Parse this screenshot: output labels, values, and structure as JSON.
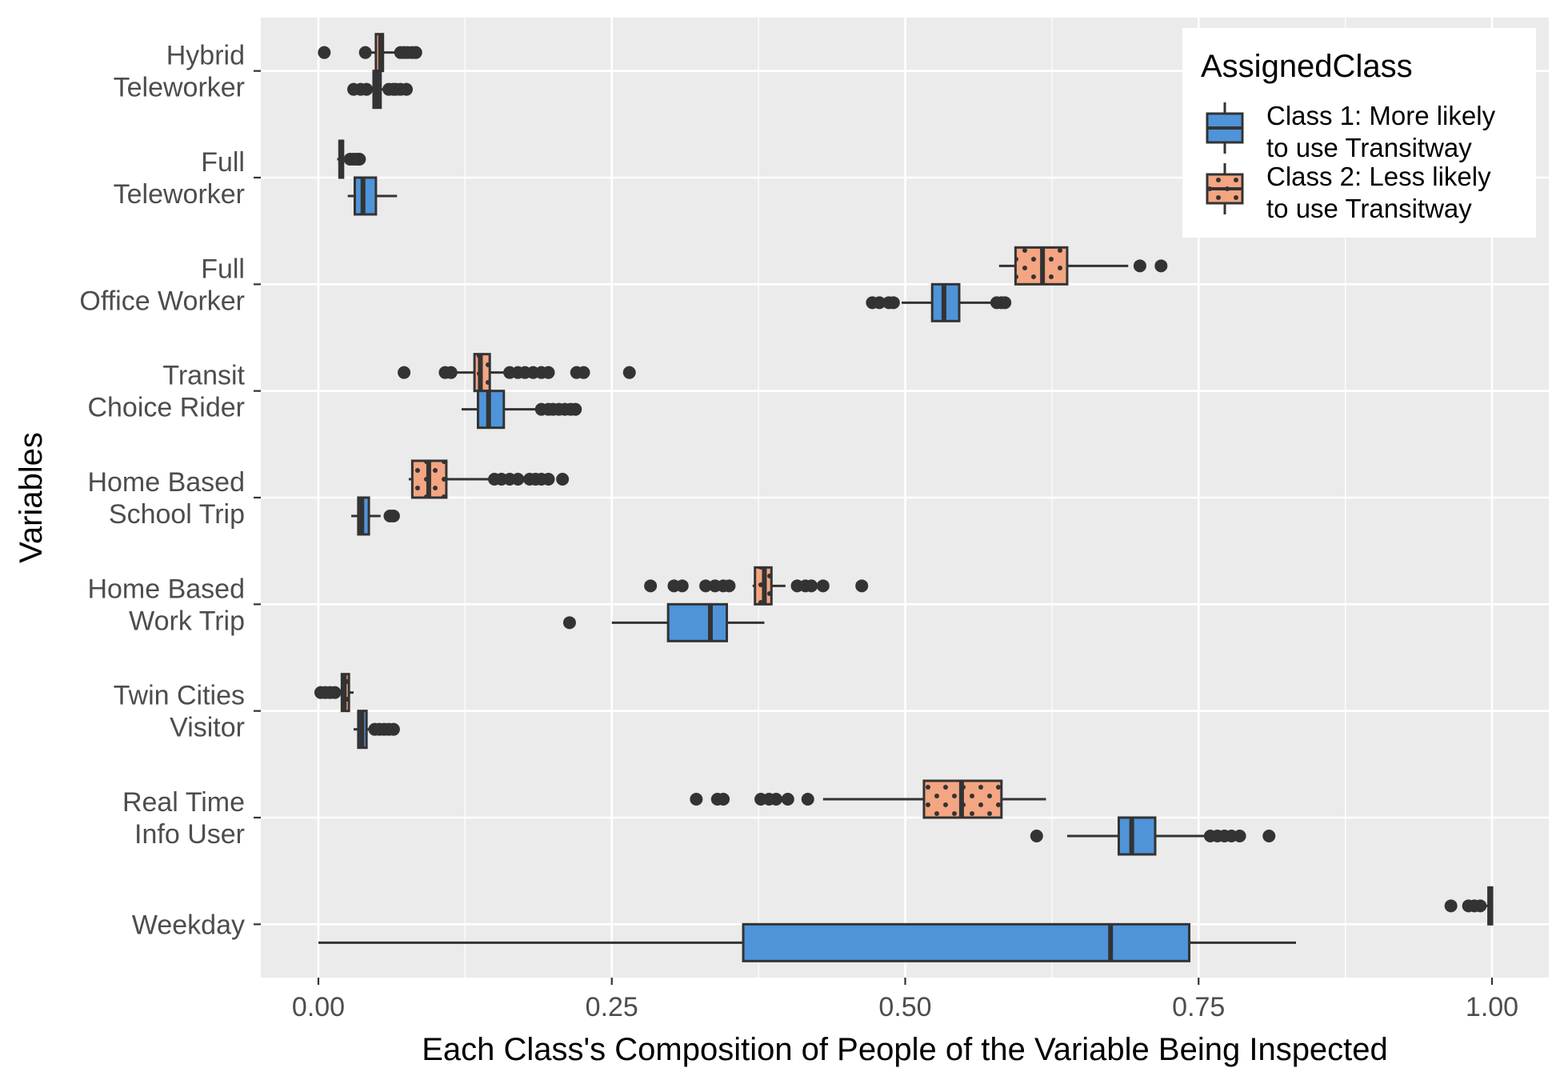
{
  "chart_data": {
    "type": "boxplot",
    "orientation": "horizontal",
    "xlabel": "Each Class's Composition of People of the Variable Being Inspected",
    "ylabel": "Variables",
    "xlim": [
      -0.1,
      1.05
    ],
    "x_ticks": [
      0,
      0.25,
      0.5,
      0.75,
      1
    ],
    "x_tick_labels": [
      "0.00",
      "0.25",
      "0.50",
      "0.75",
      "1.00"
    ],
    "grid": true,
    "legend": {
      "title": "AssignedClass",
      "position": "top-right",
      "entries": [
        {
          "key": "class1",
          "lines": [
            "Class 1: More likely",
            "to use Transitway"
          ],
          "color": "#4f94d9"
        },
        {
          "key": "class2",
          "lines": [
            "Class 2: Less likely",
            "to use Transitway"
          ],
          "color": "#f4a582",
          "pattern": "dots"
        }
      ]
    },
    "categories": [
      {
        "lines": [
          "Hybrid",
          "Teleworker"
        ],
        "class2": {
          "whisker_low": 0.039,
          "q1": 0.049,
          "median": 0.053,
          "q3": 0.055,
          "whisker_high": 0.067,
          "outliers": [
            0.005,
            0.04,
            0.07,
            0.073,
            0.076,
            0.08,
            0.083
          ]
        },
        "class1": {
          "whisker_low": 0.043,
          "q1": 0.047,
          "median": 0.05,
          "q3": 0.053,
          "whisker_high": 0.059,
          "outliers": [
            0.03,
            0.036,
            0.041,
            0.06,
            0.064,
            0.066,
            0.07,
            0.075
          ]
        }
      },
      {
        "lines": [
          "Full",
          "Teleworker"
        ],
        "class2": {
          "whisker_low": 0.016,
          "q1": 0.018,
          "median": 0.019,
          "q3": 0.021,
          "whisker_high": 0.024,
          "outliers": [
            0.027,
            0.03,
            0.033,
            0.035
          ]
        },
        "class1": {
          "whisker_low": 0.025,
          "q1": 0.031,
          "median": 0.038,
          "q3": 0.049,
          "whisker_high": 0.067,
          "outliers": []
        }
      },
      {
        "lines": [
          "Full",
          "Office Worker"
        ],
        "class2": {
          "whisker_low": 0.58,
          "q1": 0.594,
          "median": 0.617,
          "q3": 0.638,
          "whisker_high": 0.69,
          "outliers": [
            0.7,
            0.718
          ]
        },
        "class1": {
          "whisker_low": 0.497,
          "q1": 0.523,
          "median": 0.533,
          "q3": 0.546,
          "whisker_high": 0.575,
          "outliers": [
            0.472,
            0.478,
            0.486,
            0.49,
            0.578,
            0.582,
            0.585
          ]
        }
      },
      {
        "lines": [
          "Transit",
          "Choice Rider"
        ],
        "class2": {
          "whisker_low": 0.115,
          "q1": 0.133,
          "median": 0.138,
          "q3": 0.146,
          "whisker_high": 0.16,
          "outliers": [
            0.073,
            0.108,
            0.113,
            0.163,
            0.17,
            0.176,
            0.183,
            0.19,
            0.196,
            0.22,
            0.226,
            0.265
          ]
        },
        "class1": {
          "whisker_low": 0.122,
          "q1": 0.136,
          "median": 0.145,
          "q3": 0.158,
          "whisker_high": 0.187,
          "outliers": [
            0.19,
            0.196,
            0.2,
            0.205,
            0.21,
            0.215,
            0.219
          ]
        }
      },
      {
        "lines": [
          "Home Based",
          "School Trip"
        ],
        "class2": {
          "whisker_low": 0.077,
          "q1": 0.08,
          "median": 0.094,
          "q3": 0.109,
          "whisker_high": 0.147,
          "outliers": [
            0.15,
            0.156,
            0.163,
            0.17,
            0.18,
            0.185,
            0.19,
            0.196,
            0.208
          ]
        },
        "class1": {
          "whisker_low": 0.028,
          "q1": 0.034,
          "median": 0.037,
          "q3": 0.043,
          "whisker_high": 0.053,
          "outliers": [
            0.061,
            0.064
          ]
        }
      },
      {
        "lines": [
          "Home Based",
          "Work Trip"
        ],
        "class2": {
          "whisker_low": 0.37,
          "q1": 0.372,
          "median": 0.38,
          "q3": 0.386,
          "whisker_high": 0.398,
          "outliers": [
            0.283,
            0.303,
            0.31,
            0.33,
            0.338,
            0.345,
            0.35,
            0.408,
            0.415,
            0.42,
            0.43,
            0.463
          ]
        },
        "class1": {
          "whisker_low": 0.25,
          "q1": 0.298,
          "median": 0.334,
          "q3": 0.348,
          "whisker_high": 0.38,
          "outliers": [
            0.214
          ]
        }
      },
      {
        "lines": [
          "Twin Cities",
          "Visitor"
        ],
        "class2": {
          "whisker_low": 0.018,
          "q1": 0.02,
          "median": 0.022,
          "q3": 0.026,
          "whisker_high": 0.03,
          "outliers": [
            0.002,
            0.006,
            0.01,
            0.014
          ]
        },
        "class1": {
          "whisker_low": 0.03,
          "q1": 0.034,
          "median": 0.037,
          "q3": 0.041,
          "whisker_high": 0.045,
          "outliers": [
            0.048,
            0.052,
            0.056,
            0.06,
            0.064
          ]
        }
      },
      {
        "lines": [
          "Real Time",
          "Info User"
        ],
        "class2": {
          "whisker_low": 0.43,
          "q1": 0.516,
          "median": 0.548,
          "q3": 0.582,
          "whisker_high": 0.62,
          "outliers": [
            0.322,
            0.34,
            0.345,
            0.377,
            0.384,
            0.39,
            0.4,
            0.417
          ]
        },
        "class1": {
          "whisker_low": 0.638,
          "q1": 0.682,
          "median": 0.693,
          "q3": 0.713,
          "whisker_high": 0.755,
          "outliers": [
            0.612,
            0.76,
            0.766,
            0.772,
            0.778,
            0.785,
            0.81
          ]
        }
      },
      {
        "lines": [
          "Weekday"
        ],
        "class2": {
          "whisker_low": 0.995,
          "q1": 0.997,
          "median": 0.999,
          "q3": 1.0,
          "whisker_high": 1.0,
          "outliers": [
            0.965,
            0.98,
            0.985,
            0.99
          ]
        },
        "class1": {
          "whisker_low": 0.0,
          "q1": 0.362,
          "median": 0.675,
          "q3": 0.742,
          "whisker_high": 0.833,
          "outliers": []
        }
      }
    ]
  }
}
